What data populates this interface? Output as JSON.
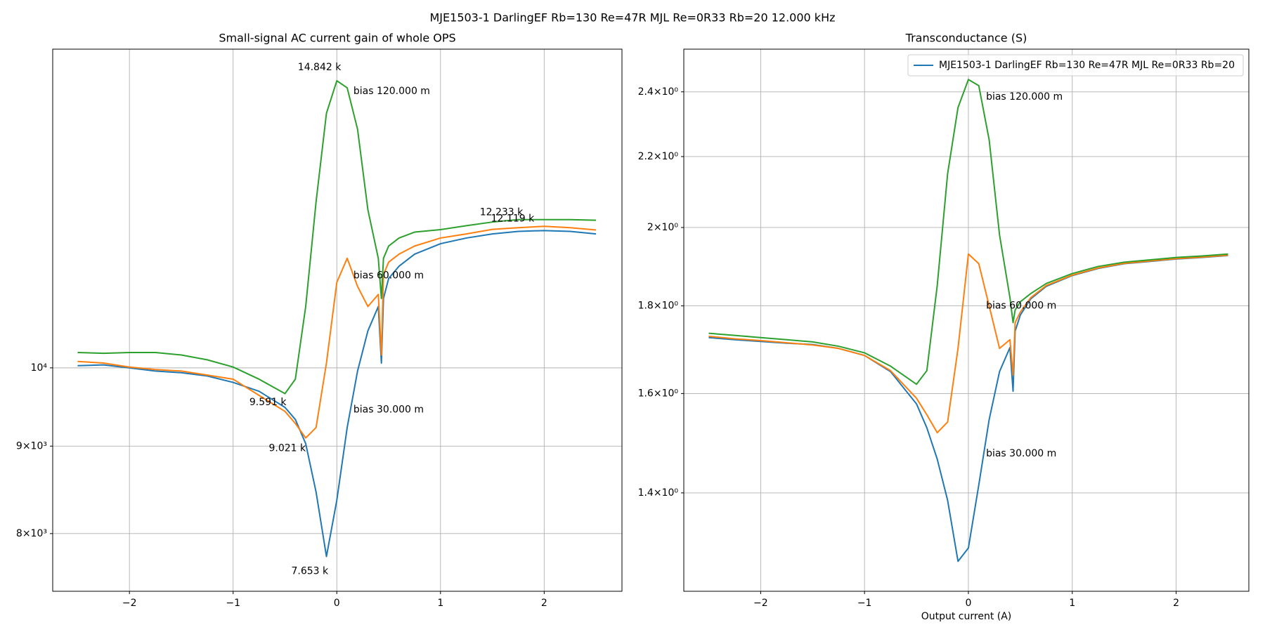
{
  "title": "MJE1503-1 DarlingEF Rb=130 Re=47R MJL Re=0R33 Rb=20 12.000 kHz",
  "chart_data": [
    {
      "type": "line",
      "title": "Small-signal AC current gain of whole OPS",
      "log_y": true,
      "grid": true,
      "x": [
        -2.5,
        -2.25,
        -2,
        -1.75,
        -1.5,
        -1.25,
        -1,
        -0.75,
        -0.5,
        -0.4,
        -0.3,
        -0.2,
        -0.1,
        0,
        0.1,
        0.2,
        0.3,
        0.4,
        0.43,
        0.45,
        0.5,
        0.6,
        0.75,
        1,
        1.25,
        1.5,
        1.75,
        2,
        2.25,
        2.5
      ],
      "series": [
        {
          "color": "#1f77b4",
          "values": [
            10030,
            10040,
            10000,
            9957,
            9935,
            9892,
            9806,
            9690,
            9482,
            9329,
            9030,
            8460,
            7757,
            8367,
            9228,
            9957,
            10512,
            10861,
            10065,
            10980,
            11280,
            11467,
            11655,
            11820,
            11911,
            11976,
            12018,
            12031,
            12018,
            11976
          ]
        },
        {
          "color": "#ff7f0e",
          "values": [
            10087,
            10065,
            10011,
            9978,
            9957,
            9903,
            9849,
            9637,
            9431,
            9279,
            9099,
            9228,
            10065,
            11220,
            11590,
            11160,
            10861,
            11040,
            10175,
            11340,
            11530,
            11655,
            11783,
            11911,
            11976,
            12050,
            12078,
            12100,
            12078,
            12040
          ]
        },
        {
          "color": "#2ca02c",
          "values": [
            10209,
            10198,
            10209,
            10209,
            10175,
            10109,
            10011,
            9849,
            9659,
            9849,
            10861,
            12506,
            14090,
            14720,
            14580,
            13790,
            12370,
            11590,
            10980,
            11590,
            11783,
            11911,
            12006,
            12046,
            12110,
            12170,
            12210,
            12210,
            12210,
            12200
          ]
        }
      ],
      "annotations": [
        {
          "text": "14.842 k",
          "x": -0.376,
          "y": 14985
        },
        {
          "text": "bias 120.000 m",
          "x": 0.16,
          "y": 14510
        },
        {
          "text": "12.233 k",
          "x": 1.379,
          "y": 12330
        },
        {
          "text": "12.119 k",
          "x": 1.487,
          "y": 12225
        },
        {
          "text": "bias 60.000 m",
          "x": 0.16,
          "y": 11320
        },
        {
          "text": "9.591 k",
          "x": -0.843,
          "y": 9544
        },
        {
          "text": "9.021 k",
          "x": -0.656,
          "y": 8972
        },
        {
          "text": "bias 30.000 m",
          "x": 0.16,
          "y": 9451
        },
        {
          "text": "7.653 k",
          "x": -0.439,
          "y": 7605
        }
      ],
      "xlim": [
        -2.74,
        2.75
      ],
      "xticks": [
        {
          "value": -2,
          "label": "−2"
        },
        {
          "value": -1,
          "label": "−1"
        },
        0,
        1,
        2
      ],
      "ylim": [
        7402,
        15360
      ],
      "yticks": [
        {
          "value": 8000,
          "label": "8×10³"
        },
        {
          "value": 9000,
          "label": "9×10³"
        },
        {
          "value": 10000,
          "label": "10⁴"
        }
      ]
    },
    {
      "type": "line",
      "title": "Transconductance (S)",
      "x_label": "Output current (A)",
      "log_y": true,
      "grid": true,
      "legend": "upper right",
      "x": [
        -2.5,
        -2.25,
        -2,
        -1.75,
        -1.5,
        -1.25,
        -1,
        -0.75,
        -0.5,
        -0.4,
        -0.3,
        -0.2,
        -0.1,
        0,
        0.1,
        0.2,
        0.3,
        0.4,
        0.43,
        0.45,
        0.5,
        0.6,
        0.75,
        1,
        1.25,
        1.5,
        1.75,
        2,
        2.25,
        2.5
      ],
      "series": [
        {
          "name": "MJE1503-1 DarlingEF Rb=130 Re=47R MJL Re=0R33 Rb=20",
          "color": "#1f77b4",
          "values": [
            1.725,
            1.72,
            1.716,
            1.712,
            1.709,
            1.7,
            1.684,
            1.648,
            1.578,
            1.528,
            1.465,
            1.386,
            1.277,
            1.3,
            1.415,
            1.545,
            1.648,
            1.702,
            1.605,
            1.74,
            1.778,
            1.817,
            1.848,
            1.875,
            1.893,
            1.905,
            1.911,
            1.917,
            1.921,
            1.926
          ]
        },
        {
          "color": "#ff7f0e",
          "values": [
            1.728,
            1.722,
            1.718,
            1.713,
            1.708,
            1.7,
            1.684,
            1.65,
            1.59,
            1.555,
            1.518,
            1.54,
            1.7,
            1.93,
            1.905,
            1.8,
            1.7,
            1.72,
            1.64,
            1.76,
            1.785,
            1.82,
            1.85,
            1.876,
            1.894,
            1.906,
            1.912,
            1.918,
            1.922,
            1.927
          ]
        },
        {
          "color": "#2ca02c",
          "values": [
            1.735,
            1.73,
            1.725,
            1.72,
            1.715,
            1.705,
            1.69,
            1.66,
            1.62,
            1.65,
            1.85,
            2.15,
            2.35,
            2.44,
            2.42,
            2.25,
            1.98,
            1.82,
            1.76,
            1.79,
            1.81,
            1.83,
            1.855,
            1.88,
            1.898,
            1.909,
            1.915,
            1.921,
            1.925,
            1.93
          ]
        }
      ],
      "annotations": [
        {
          "text": "bias 120.000 m",
          "x": 0.17,
          "y": 2.384
        },
        {
          "text": "bias 60.000 m",
          "x": 0.17,
          "y": 1.8
        },
        {
          "text": "bias 30.000 m",
          "x": 0.17,
          "y": 1.476
        }
      ],
      "xlim": [
        -2.74,
        2.7
      ],
      "xticks": [
        {
          "value": -2,
          "label": "−2"
        },
        {
          "value": -1,
          "label": "−1"
        },
        0,
        1,
        2
      ],
      "ylim": [
        1.2266,
        2.5417
      ],
      "yticks": [
        {
          "value": 1.4,
          "label": "1.4×10⁰"
        },
        {
          "value": 1.6,
          "label": "1.6×10⁰"
        },
        {
          "value": 1.8,
          "label": "1.8×10⁰"
        },
        {
          "value": 2,
          "label": "2×10⁰"
        },
        {
          "value": 2.2,
          "label": "2.2×10⁰"
        },
        {
          "value": 2.4,
          "label": "2.4×10⁰"
        }
      ]
    }
  ]
}
